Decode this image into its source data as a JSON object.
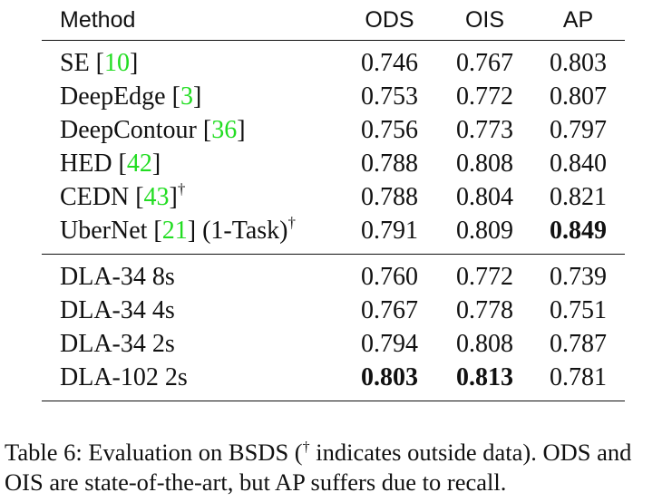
{
  "table": {
    "headers": {
      "method": "Method",
      "ods": "ODS",
      "ois": "OIS",
      "ap": "AP"
    },
    "group1": [
      {
        "name": "SE [",
        "cite": "10",
        "suffix": "]",
        "extra": "",
        "dagger": "",
        "ods": "0.746",
        "ois": "0.767",
        "ap": "0.803"
      },
      {
        "name": "DeepEdge [",
        "cite": "3",
        "suffix": "]",
        "extra": "",
        "dagger": "",
        "ods": "0.753",
        "ois": "0.772",
        "ap": "0.807"
      },
      {
        "name": "DeepContour [",
        "cite": "36",
        "suffix": "]",
        "extra": "",
        "dagger": "",
        "ods": "0.756",
        "ois": "0.773",
        "ap": "0.797"
      },
      {
        "name": "HED [",
        "cite": "42",
        "suffix": "]",
        "extra": "",
        "dagger": "",
        "ods": "0.788",
        "ois": "0.808",
        "ap": "0.840"
      },
      {
        "name": "CEDN [",
        "cite": "43",
        "suffix": "]",
        "extra": "",
        "dagger": "†",
        "ods": "0.788",
        "ois": "0.804",
        "ap": "0.821"
      },
      {
        "name": "UberNet [",
        "cite": "21",
        "suffix": "]",
        "extra": " (1-Task)",
        "dagger": "†",
        "ods": "0.791",
        "ois": "0.809",
        "ap": "0.849"
      }
    ],
    "group2": [
      {
        "name": "DLA-34 8s",
        "ods": "0.760",
        "ois": "0.772",
        "ap": "0.739"
      },
      {
        "name": "DLA-34 4s",
        "ods": "0.767",
        "ois": "0.778",
        "ap": "0.751"
      },
      {
        "name": "DLA-34 2s",
        "ods": "0.794",
        "ois": "0.808",
        "ap": "0.787"
      },
      {
        "name": "DLA-102 2s",
        "ods": "0.803",
        "ois": "0.813",
        "ap": "0.781"
      }
    ]
  },
  "caption": {
    "label": "Table 6:",
    "text_before": " Evaluation on BSDS (",
    "dagger": "†",
    "text_after": " indicates outside data). ODS and OIS are state-of-the-art, but AP suffers due to recall."
  }
}
